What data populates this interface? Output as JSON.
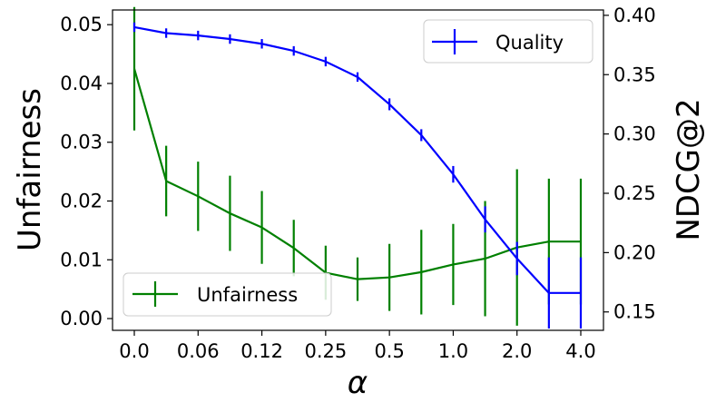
{
  "chart_data": {
    "type": "line",
    "xlabel": "α",
    "ylabel_left": "Unfairness",
    "ylabel_right": "NDCG@2",
    "categories": [
      "0.0",
      "",
      "0.06",
      "",
      "0.12",
      "",
      "0.25",
      "",
      "0.5",
      "",
      "1.0",
      "",
      "2.0",
      "",
      "4.0"
    ],
    "x_ticks": [
      "0.0",
      "0.06",
      "0.12",
      "0.25",
      "0.5",
      "1.0",
      "2.0",
      "4.0"
    ],
    "y_left": {
      "lim": [
        -0.002,
        0.0525
      ],
      "ticks": [
        0.0,
        0.01,
        0.02,
        0.03,
        0.04,
        0.05
      ],
      "tick_labels": [
        "0.00",
        "0.01",
        "0.02",
        "0.03",
        "0.04",
        "0.05"
      ]
    },
    "y_right": {
      "lim": [
        0.1345,
        0.4045
      ],
      "ticks": [
        0.15,
        0.2,
        0.25,
        0.3,
        0.35,
        0.4
      ],
      "tick_labels": [
        "0.15",
        "0.20",
        "0.25",
        "0.30",
        "0.35",
        "0.40"
      ]
    },
    "series": [
      {
        "name": "Unfairness",
        "axis": "left",
        "color": "#008000",
        "values": [
          0.0425,
          0.0234,
          0.0208,
          0.0179,
          0.0155,
          0.012,
          0.0078,
          0.0067,
          0.007,
          0.0079,
          0.0092,
          0.0102,
          0.0121,
          0.0131,
          0.0131
        ],
        "err": [
          0.0105,
          0.006,
          0.0059,
          0.0064,
          0.0062,
          0.0048,
          0.0046,
          0.0037,
          0.0057,
          0.0072,
          0.0069,
          0.0098,
          0.0133,
          0.0107,
          0.0107
        ],
        "legend_position": "lower-left"
      },
      {
        "name": "Quality",
        "axis": "right",
        "color": "#0000ff",
        "values": [
          0.39,
          0.385,
          0.383,
          0.38,
          0.376,
          0.37,
          0.361,
          0.348,
          0.325,
          0.299,
          0.266,
          0.228,
          0.195,
          0.166,
          0.166
        ],
        "err": [
          0.004,
          0.004,
          0.004,
          0.004,
          0.004,
          0.004,
          0.004,
          0.004,
          0.005,
          0.005,
          0.007,
          0.011,
          0.014,
          0.03,
          0.03
        ],
        "legend_position": "upper-right"
      }
    ]
  }
}
